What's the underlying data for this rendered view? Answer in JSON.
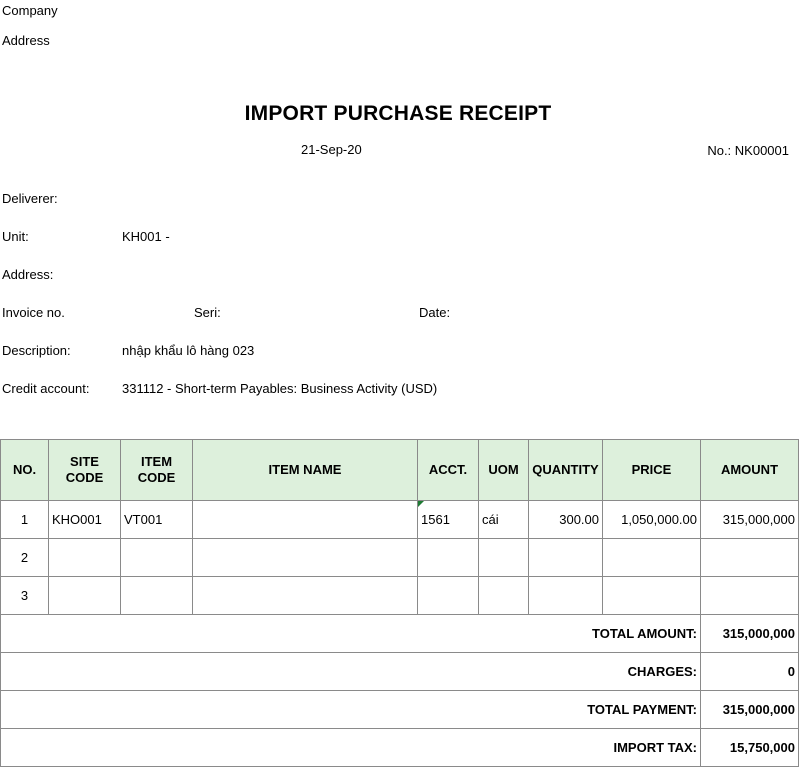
{
  "header": {
    "company_label": "Company",
    "address_label": "Address",
    "title": "IMPORT PURCHASE RECEIPT",
    "date": "21-Sep-20",
    "number": "No.: NK00001"
  },
  "info": {
    "deliverer_label": "Deliverer:",
    "unit_label": "Unit:",
    "unit_value": "KH001 -",
    "address_label": "Address:",
    "invoice_label": "Invoice no.",
    "seri_label": "Seri:",
    "date_label": "Date:",
    "description_label": "Description:",
    "description_value": "nhập khẩu lô hàng 023",
    "credit_label": "Credit account:",
    "credit_value": "331112 - Short-term Payables: Business Activity (USD)"
  },
  "table": {
    "headers": {
      "no": "NO.",
      "site_code": "SITE CODE",
      "item_code": "ITEM CODE",
      "item_name": "ITEM NAME",
      "acct": "ACCT.",
      "uom": "UOM",
      "quantity": "QUANTITY",
      "price": "PRICE",
      "amount": "AMOUNT"
    },
    "rows": [
      {
        "no": "1",
        "site_code": "KHO001",
        "item_code": "VT001",
        "item_name": "",
        "acct": "1561",
        "uom": "cái",
        "quantity": "300.00",
        "price": "1,050,000.00",
        "amount": "315,000,000"
      },
      {
        "no": "2",
        "site_code": "",
        "item_code": "",
        "item_name": "",
        "acct": "",
        "uom": "",
        "quantity": "",
        "price": "",
        "amount": ""
      },
      {
        "no": "3",
        "site_code": "",
        "item_code": "",
        "item_name": "",
        "acct": "",
        "uom": "",
        "quantity": "",
        "price": "",
        "amount": ""
      }
    ],
    "totals": [
      {
        "label": "TOTAL AMOUNT:",
        "value": "315,000,000"
      },
      {
        "label": "CHARGES:",
        "value": "0"
      },
      {
        "label": "TOTAL PAYMENT:",
        "value": "315,000,000"
      },
      {
        "label": "IMPORT TAX:",
        "value": "15,750,000"
      }
    ]
  },
  "colors": {
    "header_fill": "#ddf0dc",
    "border": "#8a8a8a",
    "comment_marker": "#1e7b34"
  }
}
